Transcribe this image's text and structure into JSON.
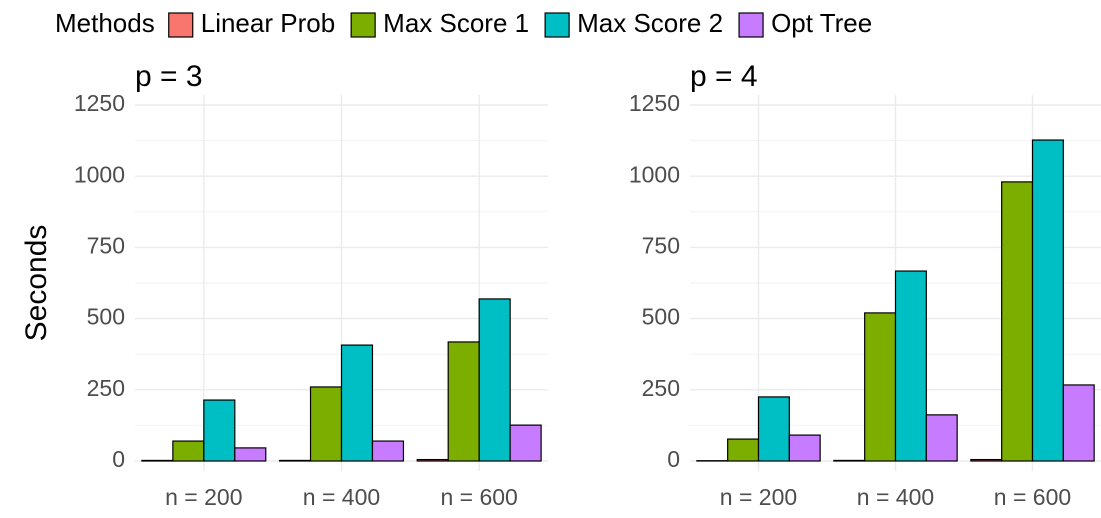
{
  "chart_data": [
    {
      "type": "bar",
      "title": "p = 3",
      "ylabel": "Seconds",
      "legend_title": "Methods",
      "categories": [
        "n = 200",
        "n = 400",
        "n = 600"
      ],
      "series": [
        {
          "name": "Linear Prob",
          "color": "#F8766D",
          "values": [
            2,
            2,
            5
          ]
        },
        {
          "name": "Max Score 1",
          "color": "#7CAE00",
          "values": [
            70,
            260,
            418
          ]
        },
        {
          "name": "Max Score 2",
          "color": "#00BFC4",
          "values": [
            214,
            407,
            569
          ]
        },
        {
          "name": "Opt Tree",
          "color": "#C77CFF",
          "values": [
            46,
            70,
            126
          ]
        }
      ],
      "ylim": [
        0,
        1250
      ],
      "yticks": [
        0,
        250,
        500,
        750,
        1000,
        1250
      ],
      "grid": true
    },
    {
      "type": "bar",
      "title": "p = 4",
      "categories": [
        "n = 200",
        "n = 400",
        "n = 600"
      ],
      "series": [
        {
          "name": "Linear Prob",
          "color": "#F8766D",
          "values": [
            1,
            2,
            5
          ]
        },
        {
          "name": "Max Score 1",
          "color": "#7CAE00",
          "values": [
            77,
            520,
            980
          ]
        },
        {
          "name": "Max Score 2",
          "color": "#00BFC4",
          "values": [
            225,
            667,
            1127
          ]
        },
        {
          "name": "Opt Tree",
          "color": "#C77CFF",
          "values": [
            91,
            162,
            267
          ]
        }
      ],
      "ylim": [
        0,
        1250
      ],
      "yticks": [
        0,
        250,
        500,
        750,
        1000,
        1250
      ],
      "grid": true
    }
  ]
}
